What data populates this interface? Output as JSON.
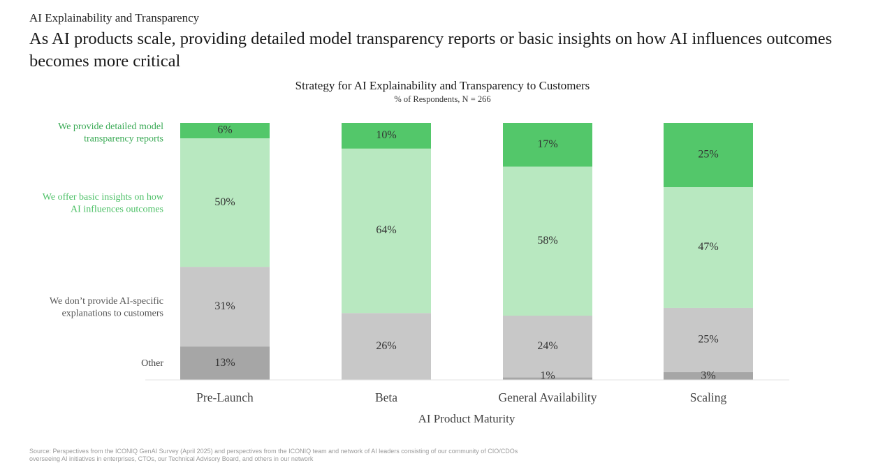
{
  "header": {
    "kicker": "AI Explainability and Transparency",
    "headline": "As AI products scale, providing detailed model transparency reports or basic insights on how AI influences outcomes becomes more critical"
  },
  "footer": {
    "source": "Source: Perspectives from the ICONIQ GenAI Survey (April 2025) and perspectives from the ICONIQ team and network of AI leaders consisting of our community of CIO/CDOs overseeing AI initiatives in enterprises, CTOs, our Technical Advisory Board, and others in our network"
  },
  "chart_data": {
    "type": "bar",
    "stacked": true,
    "title": "Strategy for AI Explainability and Transparency to Customers",
    "subtitle": "% of Respondents, N = 266",
    "xlabel": "AI Product Maturity",
    "ylabel": "",
    "ylim": [
      0,
      100
    ],
    "categories": [
      "Pre-Launch",
      "Beta",
      "General Availability",
      "Scaling"
    ],
    "series": [
      {
        "name": "Other",
        "legend_lines": [
          "Other"
        ],
        "values": [
          13,
          0,
          1,
          3
        ],
        "labels": [
          "13%",
          "",
          "1%",
          "3%"
        ],
        "color": "#a6a6a6",
        "legend_color": "#444444"
      },
      {
        "name": "We don't provide AI-specific explanations to customers",
        "legend_lines": [
          "We don’t provide AI-specific",
          "explanations to customers"
        ],
        "values": [
          31,
          26,
          24,
          25
        ],
        "labels": [
          "31%",
          "26%",
          "24%",
          "25%"
        ],
        "color": "#c8c8c8",
        "legend_color": "#555555"
      },
      {
        "name": "We offer basic insights on how AI influences outcomes",
        "legend_lines": [
          "We offer basic insights on how",
          "AI influences outcomes"
        ],
        "values": [
          50,
          64,
          58,
          47
        ],
        "labels": [
          "50%",
          "64%",
          "58%",
          "47%"
        ],
        "color": "#b8e8c0",
        "legend_color": "#4cc066"
      },
      {
        "name": "We provide detailed model transparency reports",
        "legend_lines": [
          "We provide detailed model",
          "transparency reports"
        ],
        "values": [
          6,
          10,
          17,
          25
        ],
        "labels": [
          "6%",
          "10%",
          "17%",
          "25%"
        ],
        "color": "#53c76a",
        "legend_color": "#3aaa55"
      }
    ]
  }
}
